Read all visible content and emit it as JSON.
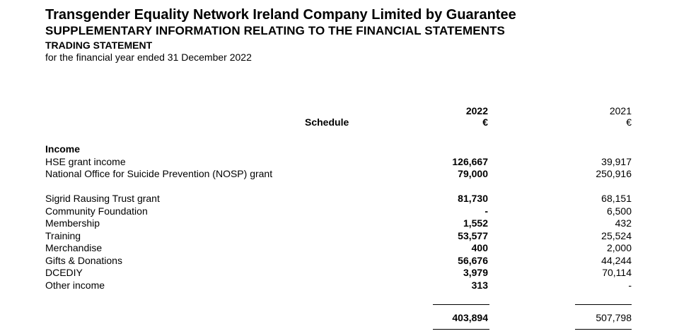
{
  "header": {
    "company": "Transgender Equality Network Ireland Company Limited by Guarantee",
    "subtitle": "SUPPLEMENTARY INFORMATION RELATING TO THE FINANCIAL STATEMENTS",
    "statement": "TRADING STATEMENT",
    "period": "for the financial year ended 31 December 2022"
  },
  "columns": {
    "schedule": "Schedule",
    "current_year": "2022",
    "current_currency": "€",
    "prior_year": "2021",
    "prior_currency": "€"
  },
  "income": {
    "heading": "Income",
    "rows": [
      {
        "label": "HSE grant income",
        "current": "126,667",
        "prior": "39,917"
      },
      {
        "label": "National Office for Suicide Prevention (NOSP) grant",
        "current": "79,000",
        "prior": "250,916"
      },
      {
        "label": "Sigrid Rausing Trust grant",
        "current": "81,730",
        "prior": "68,151"
      },
      {
        "label": "Community Foundation",
        "current": "-",
        "prior": "6,500"
      },
      {
        "label": "Membership",
        "current": "1,552",
        "prior": "432"
      },
      {
        "label": "Training",
        "current": "53,577",
        "prior": "25,524"
      },
      {
        "label": "Merchandise",
        "current": "400",
        "prior": "2,000"
      },
      {
        "label": "Gifts & Donations",
        "current": "56,676",
        "prior": "44,244"
      },
      {
        "label": "DCEDIY",
        "current": "3,979",
        "prior": "70,114"
      },
      {
        "label": "Other income",
        "current": "313",
        "prior": "-"
      }
    ],
    "total_current": "403,894",
    "total_prior": "507,798"
  }
}
